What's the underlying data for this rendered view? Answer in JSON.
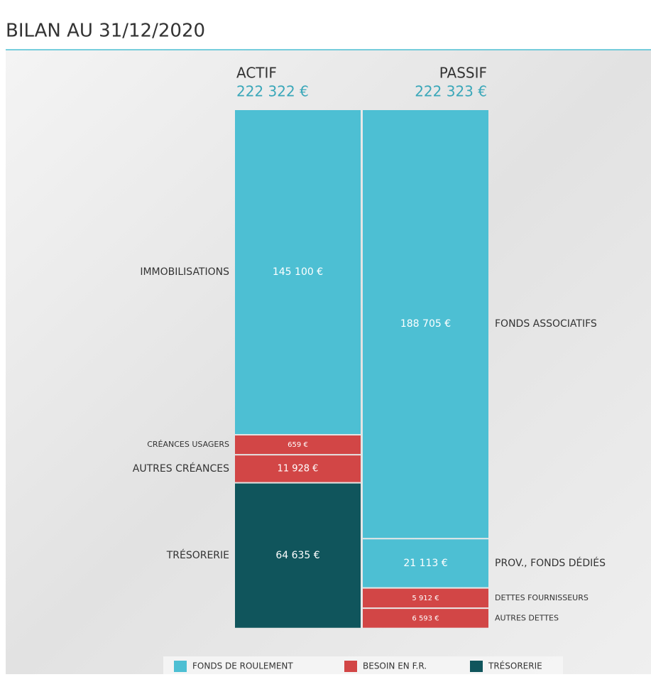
{
  "chart_data": {
    "type": "balance-sheet",
    "title": "BILAN AU 31/12/2020",
    "columns": [
      {
        "name": "ACTIF",
        "total": 222322,
        "total_label": "222 322 €",
        "segments": [
          {
            "name": "IMMOBILISATIONS",
            "value": 145100,
            "value_label": "145 100 €",
            "color": "#4dbfd3"
          },
          {
            "name": "CRÉANCES USAGERS",
            "value": 659,
            "value_label": "659 €",
            "color": "#d24646"
          },
          {
            "name": "AUTRES CRÉANCES",
            "value": 11928,
            "value_label": "11 928 €",
            "color": "#d24646"
          },
          {
            "name": "TRÉSORERIE",
            "value": 64635,
            "value_label": "64 635 €",
            "color": "#10555c"
          }
        ]
      },
      {
        "name": "PASSIF",
        "total": 222323,
        "total_label": "222 323 €",
        "segments": [
          {
            "name": "FONDS ASSOCIATIFS",
            "value": 188705,
            "value_label": "188 705 €",
            "color": "#4dbfd3"
          },
          {
            "name": "PROV., FONDS DÉDIÉS",
            "value": 21113,
            "value_label": "21 113 €",
            "color": "#4dbfd3"
          },
          {
            "name": "DETTES FOURNISSEURS",
            "value": 5912,
            "value_label": "5 912 €",
            "color": "#d24646"
          },
          {
            "name": "AUTRES DETTES",
            "value": 6593,
            "value_label": "6 593 €",
            "color": "#d24646"
          }
        ]
      }
    ],
    "legend": [
      {
        "name": "FONDS DE ROULEMENT",
        "color": "#4dbfd3"
      },
      {
        "name": "BESOIN EN F.R.",
        "color": "#d24646"
      },
      {
        "name": "TRÉSORERIE",
        "color": "#10555c"
      }
    ]
  }
}
